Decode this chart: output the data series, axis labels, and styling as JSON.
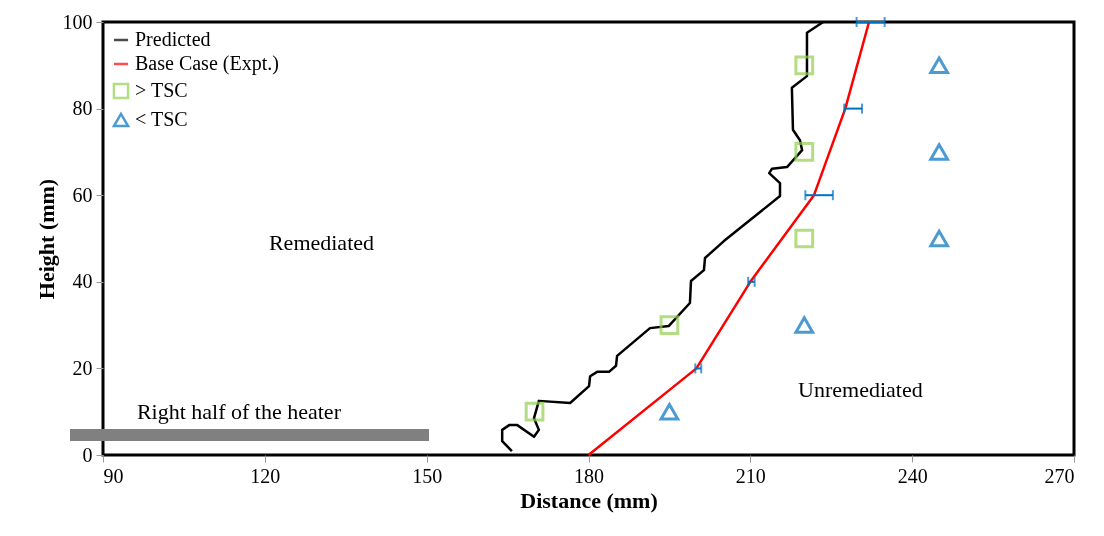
{
  "chart_data": {
    "type": "line",
    "xlabel": "Distance (mm)",
    "ylabel": "Height (mm)",
    "xlim": [
      90,
      270
    ],
    "xticks": [
      90,
      120,
      150,
      180,
      210,
      240,
      270
    ],
    "ylim": [
      0,
      100
    ],
    "yticks": [
      0,
      20,
      40,
      60,
      80,
      100
    ],
    "grid": false,
    "legend": "top left",
    "series": [
      {
        "name": "Predicted",
        "color": "#000000",
        "x": [
          165.8,
          164.0,
          164.0,
          165.3,
          166.8,
          169.9,
          170.8,
          169.9,
          170.8,
          176.6,
          180.1,
          180.3,
          181.6,
          183.8,
          185.1,
          185.3,
          191.4,
          194.9,
          198.8,
          199.0,
          201.4,
          201.6,
          205.1,
          215.5,
          215.5,
          213.5,
          214.0,
          216.8,
          219.6,
          219.2,
          217.9,
          217.7,
          220.5,
          220.5,
          223.5
        ],
        "values": [
          0.9,
          3.2,
          5.8,
          6.9,
          6.9,
          4.2,
          5.8,
          8.5,
          12.5,
          12.0,
          15.9,
          18.2,
          19.2,
          19.2,
          20.6,
          22.9,
          29.3,
          29.8,
          35.1,
          40.2,
          42.7,
          45.5,
          49.4,
          59.8,
          62.8,
          65.1,
          66.1,
          66.5,
          70.4,
          72.7,
          75.1,
          84.8,
          87.5,
          97.5,
          100
        ]
      },
      {
        "name": "Base Case (Expt.)",
        "color": "#ff0000",
        "x": [
          180,
          200,
          210,
          221.8,
          227.6,
          232
        ],
        "values": [
          0,
          20,
          40,
          60,
          80,
          100
        ],
        "xerrors": [
          null,
          [
            199.8,
            200.9
          ],
          [
            209.6,
            210.8
          ],
          [
            220.2,
            225.3
          ],
          [
            227.4,
            230.7
          ],
          [
            229.7,
            234.9
          ]
        ]
      },
      {
        "name": "> TSC",
        "type": "scatter",
        "marker": "square",
        "color": "#92d050",
        "x": [
          170,
          195,
          220,
          220,
          220
        ],
        "values": [
          10,
          30,
          50,
          70,
          90
        ]
      },
      {
        "name": "< TSC",
        "type": "scatter",
        "marker": "triangle",
        "color": "#0070c0",
        "x": [
          195,
          220,
          245,
          245,
          245
        ],
        "values": [
          10,
          30,
          50,
          70,
          90
        ]
      }
    ],
    "annotations": [
      "Remediated",
      "Unremediated",
      "Right half of the heater"
    ]
  }
}
